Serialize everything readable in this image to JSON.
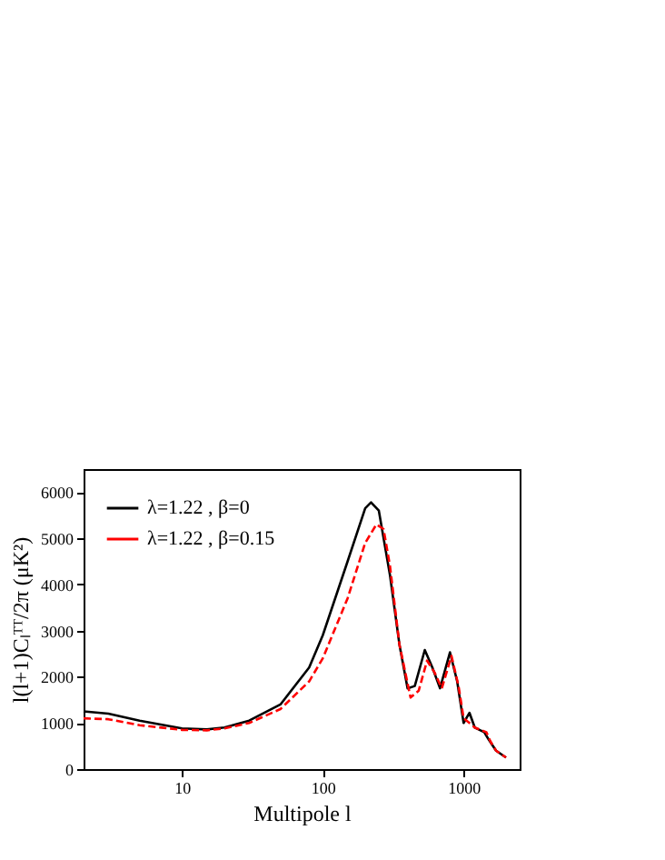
{
  "chart_data": {
    "type": "line",
    "xlabel": "Multipole l",
    "ylabel": "l(l+1)Cₗᵀᵀ/2π (μK²)",
    "log": "x",
    "xlim": [
      2,
      2500
    ],
    "xticks": [
      10,
      100,
      1000
    ],
    "ylim": [
      0,
      6500
    ],
    "yticks": [
      0,
      1000,
      2000,
      3000,
      4000,
      5000,
      6000
    ],
    "grid": false,
    "legend": "top left",
    "marker": "none",
    "series": [
      {
        "name": "λ=1.22 , β=0",
        "color": "#000000",
        "line_style": "solid",
        "x": [
          2,
          3,
          5,
          10,
          15,
          20,
          30,
          50,
          80,
          100,
          150,
          200,
          220,
          250,
          300,
          350,
          400,
          450,
          530,
          600,
          680,
          800,
          900,
          1000,
          1100,
          1200,
          1400,
          1500,
          1700,
          2000
        ],
        "values": [
          1250,
          1200,
          1050,
          880,
          860,
          900,
          1050,
          1400,
          2200,
          2900,
          4500,
          5650,
          5780,
          5600,
          4200,
          2700,
          1750,
          1800,
          2580,
          2200,
          1750,
          2530,
          1900,
          1000,
          1220,
          900,
          800,
          650,
          400,
          250
        ]
      },
      {
        "name": "λ=1.22 , β=0.15",
        "color": "#ff0000",
        "line_style": "dashed",
        "x": [
          2,
          3,
          5,
          10,
          15,
          20,
          30,
          50,
          80,
          100,
          150,
          200,
          240,
          270,
          300,
          350,
          420,
          480,
          550,
          620,
          700,
          820,
          920,
          1000,
          1100,
          1200,
          1450,
          1550,
          1700,
          2000
        ],
        "values": [
          1100,
          1080,
          950,
          850,
          840,
          880,
          1000,
          1300,
          1900,
          2400,
          3700,
          4900,
          5300,
          5200,
          4400,
          2700,
          1550,
          1700,
          2350,
          2100,
          1750,
          2450,
          1800,
          1100,
          1000,
          900,
          800,
          600,
          400,
          250
        ]
      }
    ]
  }
}
